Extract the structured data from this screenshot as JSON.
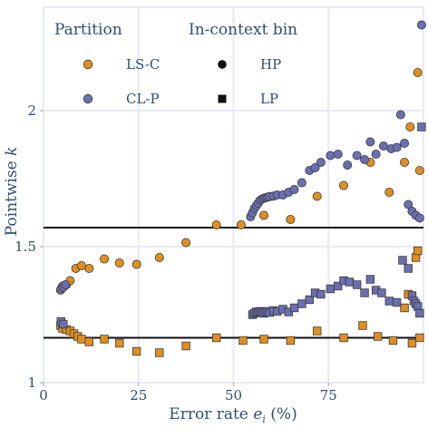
{
  "chart_data": {
    "type": "scatter",
    "xlabel_prefix": "Error rate ",
    "xlabel_var": "e",
    "xlabel_sub": "i",
    "xlabel_suffix": " (%)",
    "ylabel_prefix": "Pointwise ",
    "ylabel_var": "k",
    "xlim": [
      0,
      100
    ],
    "ylim": [
      1.0,
      2.38
    ],
    "x_ticks": [
      0,
      25,
      50,
      75
    ],
    "x_tick_labels": [
      "0",
      "25",
      "50",
      "75"
    ],
    "y_ticks": [
      1.0,
      1.5,
      2.0
    ],
    "y_tick_labels": [
      "1",
      "1.5",
      "2"
    ],
    "grid": true,
    "legend_placement": "top-left",
    "legend": {
      "partition_title": "Partition",
      "bin_title": "In-context bin",
      "partition_items": [
        {
          "label": "LS-C",
          "color": "#e08f1f"
        },
        {
          "label": "CL-P",
          "color": "#6a6fb1"
        }
      ],
      "bin_items": [
        {
          "label": "HP",
          "marker": "circle"
        },
        {
          "label": "LP",
          "marker": "square"
        }
      ]
    },
    "reference_lines": [
      1.57,
      1.165
    ],
    "colors": {
      "LS-C": "#e08f1f",
      "CL-P": "#6a6fb1",
      "stroke": "#3a3a3a",
      "grid": "#e6eaf3",
      "text": "#2d4f75"
    },
    "series": [
      {
        "partition": "LS-C",
        "bin": "HP",
        "x": [
          4.5,
          5,
          6,
          7,
          8.5,
          10,
          12,
          16,
          20,
          24.5,
          30.5,
          37.5,
          45.5,
          52,
          58,
          65,
          72,
          79,
          86,
          91,
          95,
          96.5,
          98.5,
          99
        ],
        "y": [
          1.34,
          1.355,
          1.36,
          1.375,
          1.42,
          1.43,
          1.42,
          1.455,
          1.44,
          1.435,
          1.46,
          1.515,
          1.58,
          1.58,
          1.615,
          1.6,
          1.685,
          1.725,
          1.81,
          1.7,
          1.81,
          1.94,
          2.14,
          1.78
        ]
      },
      {
        "partition": "CL-P",
        "bin": "HP",
        "x": [
          4.6,
          5.2,
          5.8,
          54.5,
          55,
          55.5,
          56,
          56.5,
          57,
          57.5,
          58,
          58.5,
          59,
          59.5,
          60.5,
          61.5,
          63,
          64.5,
          66,
          68,
          70,
          71.5,
          73,
          75.5,
          77.5,
          80,
          82.5,
          84.5,
          86,
          87.5,
          89.5,
          91.5,
          93,
          94,
          95,
          96,
          97,
          98,
          99,
          99.5
        ],
        "y": [
          1.345,
          1.35,
          1.36,
          1.61,
          1.625,
          1.64,
          1.65,
          1.66,
          1.67,
          1.675,
          1.678,
          1.68,
          1.682,
          1.684,
          1.686,
          1.69,
          1.69,
          1.7,
          1.71,
          1.735,
          1.78,
          1.79,
          1.81,
          1.835,
          1.84,
          1.8,
          1.835,
          1.82,
          1.885,
          1.84,
          1.87,
          1.86,
          1.865,
          1.985,
          1.88,
          1.655,
          1.63,
          1.615,
          1.605,
          2.315
        ]
      },
      {
        "partition": "LS-C",
        "bin": "LP",
        "x": [
          4.5,
          5,
          6,
          7,
          8,
          9,
          10,
          12,
          16,
          20,
          24.5,
          30.5,
          37.5,
          45.5,
          52.5,
          58,
          65,
          72,
          79,
          84,
          88,
          92,
          95,
          96,
          97,
          98,
          98.5,
          99
        ],
        "y": [
          1.21,
          1.2,
          1.195,
          1.19,
          1.18,
          1.17,
          1.16,
          1.15,
          1.16,
          1.145,
          1.115,
          1.11,
          1.135,
          1.165,
          1.155,
          1.16,
          1.155,
          1.19,
          1.165,
          1.21,
          1.17,
          1.155,
          1.275,
          1.325,
          1.145,
          1.46,
          1.485,
          1.165
        ]
      },
      {
        "partition": "CL-P",
        "bin": "LP",
        "x": [
          4.6,
          5.2,
          55,
          55.5,
          56,
          56.5,
          57,
          57.5,
          58,
          58.5,
          59,
          59.5,
          60.5,
          61.5,
          63,
          64.5,
          66,
          68,
          70,
          71.5,
          73,
          75.5,
          77.5,
          79,
          80.5,
          82.5,
          84.5,
          86,
          87.5,
          89,
          91,
          93,
          94.5,
          96,
          97,
          97.5,
          98,
          98.5,
          99,
          99.5
        ],
        "y": [
          1.225,
          1.215,
          1.25,
          1.255,
          1.26,
          1.258,
          1.262,
          1.26,
          1.255,
          1.26,
          1.262,
          1.258,
          1.265,
          1.262,
          1.27,
          1.26,
          1.275,
          1.29,
          1.305,
          1.33,
          1.325,
          1.345,
          1.355,
          1.375,
          1.37,
          1.36,
          1.33,
          1.38,
          1.34,
          1.33,
          1.3,
          1.295,
          1.45,
          1.42,
          1.32,
          1.3,
          1.29,
          1.28,
          1.255,
          1.94
        ]
      }
    ]
  }
}
